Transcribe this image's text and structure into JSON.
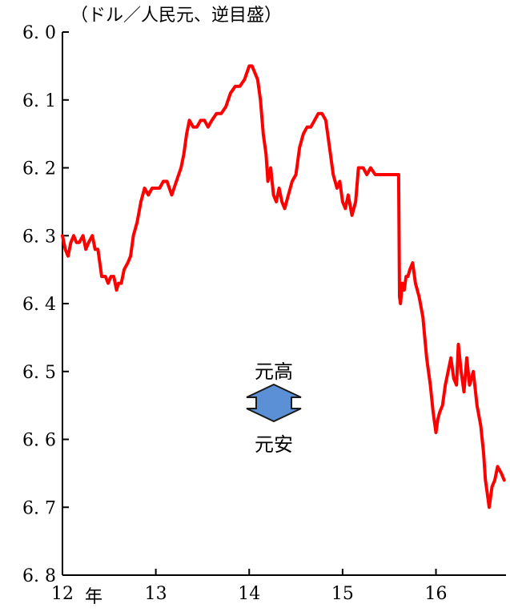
{
  "chart_data": {
    "type": "line",
    "unit_label": "（ドル／人民元、逆目盛）",
    "x_tick_labels": [
      "12",
      "13",
      "14",
      "15",
      "16"
    ],
    "x_unit_label": "年",
    "y_tick_labels": [
      "6. 0",
      "6. 1",
      "6. 2",
      "6. 3",
      "6. 4",
      "6. 5",
      "6. 6",
      "6. 7",
      "6. 8"
    ],
    "xlim": [
      2012.0,
      2016.75
    ],
    "ylim": [
      6.0,
      6.8
    ],
    "y_inverted": true,
    "line_color": "#ff0000",
    "arrow_color": "#5b8fd6",
    "annotation_up": "元高",
    "annotation_down": "元安",
    "series": [
      {
        "x": [
          2012.0,
          2012.03,
          2012.06,
          2012.09,
          2012.12,
          2012.15,
          2012.18,
          2012.22,
          2012.25,
          2012.28,
          2012.32,
          2012.35,
          2012.38,
          2012.42,
          2012.46,
          2012.49,
          2012.52,
          2012.55,
          2012.58,
          2012.6,
          2012.63,
          2012.66,
          2012.7,
          2012.73,
          2012.76,
          2012.8,
          2012.84,
          2012.88,
          2012.92,
          2012.96,
          2013.0,
          2013.04,
          2013.08,
          2013.12,
          2013.17,
          2013.22,
          2013.27,
          2013.3,
          2013.33,
          2013.36,
          2013.4,
          2013.44,
          2013.48,
          2013.52,
          2013.56,
          2013.6,
          2013.65,
          2013.7,
          2013.75,
          2013.8,
          2013.85,
          2013.9,
          2013.95,
          2014.0,
          2014.03,
          2014.06,
          2014.09,
          2014.12,
          2014.15,
          2014.18,
          2014.2,
          2014.23,
          2014.26,
          2014.29,
          2014.32,
          2014.35,
          2014.38,
          2014.42,
          2014.46,
          2014.5,
          2014.54,
          2014.58,
          2014.62,
          2014.66,
          2014.7,
          2014.74,
          2014.78,
          2014.82,
          2014.86,
          2014.9,
          2014.94,
          2014.97,
          2015.0,
          2015.03,
          2015.06,
          2015.1,
          2015.14,
          2015.17,
          2015.2,
          2015.22,
          2015.26,
          2015.3,
          2015.35,
          2015.4,
          2015.45,
          2015.5,
          2015.55,
          2015.6,
          2015.61,
          2015.62,
          2015.64,
          2015.66,
          2015.68,
          2015.7,
          2015.72,
          2015.75,
          2015.78,
          2015.82,
          2015.86,
          2015.9,
          2015.94,
          2015.97,
          2016.0,
          2016.02,
          2016.04,
          2016.07,
          2016.1,
          2016.13,
          2016.16,
          2016.19,
          2016.22,
          2016.24,
          2016.27,
          2016.3,
          2016.33,
          2016.36,
          2016.4,
          2016.44,
          2016.48,
          2016.51,
          2016.53,
          2016.55,
          2016.57,
          2016.6,
          2016.63,
          2016.66,
          2016.7,
          2016.73
        ],
        "y": [
          6.3,
          6.32,
          6.33,
          6.31,
          6.3,
          6.31,
          6.31,
          6.3,
          6.32,
          6.31,
          6.3,
          6.32,
          6.32,
          6.36,
          6.36,
          6.37,
          6.36,
          6.36,
          6.38,
          6.37,
          6.37,
          6.35,
          6.34,
          6.33,
          6.3,
          6.28,
          6.25,
          6.23,
          6.24,
          6.23,
          6.23,
          6.23,
          6.22,
          6.22,
          6.24,
          6.22,
          6.2,
          6.18,
          6.15,
          6.13,
          6.14,
          6.14,
          6.13,
          6.13,
          6.14,
          6.13,
          6.12,
          6.12,
          6.11,
          6.09,
          6.08,
          6.08,
          6.07,
          6.05,
          6.05,
          6.06,
          6.07,
          6.1,
          6.15,
          6.18,
          6.22,
          6.2,
          6.24,
          6.25,
          6.23,
          6.25,
          6.26,
          6.24,
          6.22,
          6.21,
          6.17,
          6.15,
          6.14,
          6.14,
          6.13,
          6.12,
          6.12,
          6.13,
          6.17,
          6.21,
          6.23,
          6.22,
          6.25,
          6.26,
          6.24,
          6.27,
          6.25,
          6.2,
          6.2,
          6.2,
          6.21,
          6.2,
          6.21,
          6.21,
          6.21,
          6.21,
          6.21,
          6.21,
          6.39,
          6.4,
          6.37,
          6.38,
          6.36,
          6.36,
          6.35,
          6.34,
          6.37,
          6.39,
          6.42,
          6.48,
          6.52,
          6.56,
          6.59,
          6.57,
          6.56,
          6.55,
          6.52,
          6.5,
          6.48,
          6.51,
          6.52,
          6.46,
          6.5,
          6.53,
          6.48,
          6.52,
          6.5,
          6.55,
          6.58,
          6.62,
          6.66,
          6.68,
          6.7,
          6.67,
          6.66,
          6.64,
          6.65,
          6.66
        ]
      }
    ]
  }
}
